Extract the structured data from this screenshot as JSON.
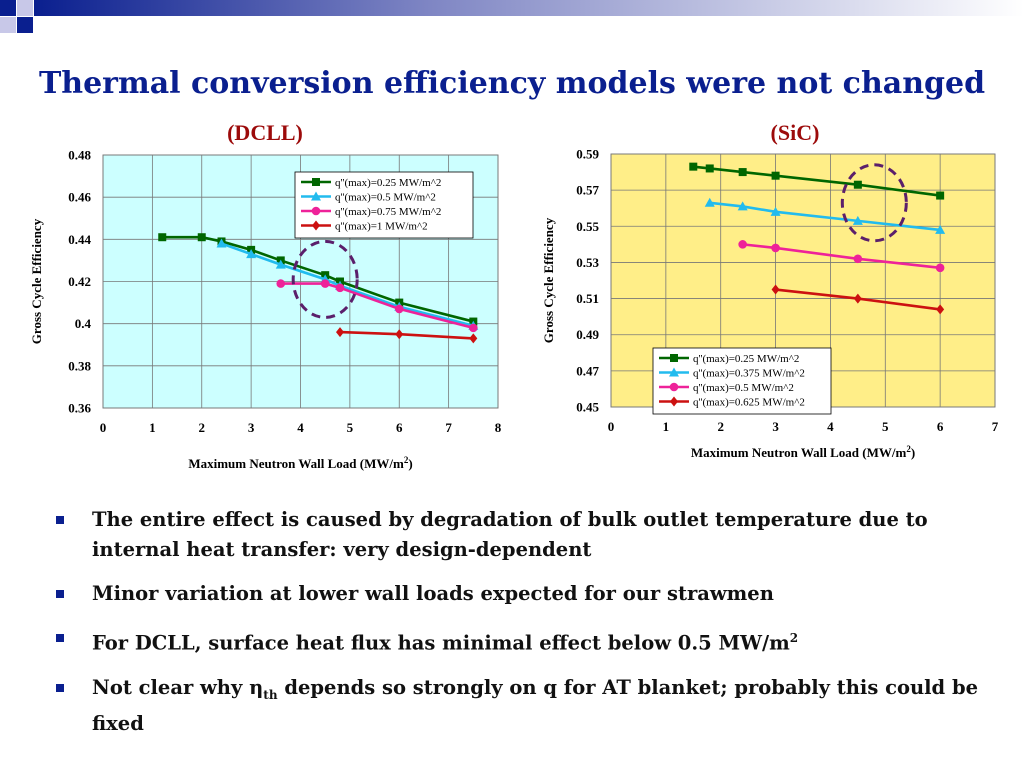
{
  "slide": {
    "title": "Thermal conversion efficiency models were not changed",
    "bullets": [
      {
        "text": "The entire effect is caused by degradation of bulk outlet temperature due to internal heat transfer:  very design-dependent"
      },
      {
        "text": "Minor variation at lower wall loads expected for our strawmen"
      },
      {
        "pre": "For DCLL, surface heat flux has minimal effect below 0.5 MW/m",
        "sup": "2"
      },
      {
        "pre": "Not clear why ",
        "greek": "η",
        "sub": "th",
        "post": " depends so strongly on q for AT blanket; probably this could be fixed"
      }
    ]
  },
  "colors": {
    "title": "#0a1f8f",
    "subtitle": "#9c0a0a",
    "bullet_marker": "#0a1f8f",
    "dcll_bg": "#ccffff",
    "sic_bg": "#ffee88",
    "circle": "#5b1f6b"
  },
  "chart_data": [
    {
      "type": "line",
      "subtitle": "(DCLL)",
      "xlabel": "Maximum Neutron Wall Load (MW/m",
      "xlabel_sup": "2",
      "xlabel_post": ")",
      "ylabel": "Gross Cycle Efficiency",
      "xlim": [
        0,
        8
      ],
      "ylim": [
        0.36,
        0.48
      ],
      "xticks": [
        "0",
        "1",
        "2",
        "3",
        "4",
        "5",
        "6",
        "7",
        "8"
      ],
      "yticks": [
        "0.36",
        "0.38",
        "0.4",
        "0.42",
        "0.44",
        "0.46",
        "0.48"
      ],
      "grid": true,
      "legend_position": "top-right",
      "series": [
        {
          "name": "q''(max)=0.25 MW/m^2",
          "color": "#006600",
          "marker": "square",
          "x": [
            1.2,
            2.0,
            2.4,
            3.0,
            3.6,
            4.5,
            4.8,
            6.0,
            7.5
          ],
          "y": [
            0.441,
            0.441,
            0.439,
            0.435,
            0.43,
            0.423,
            0.42,
            0.41,
            0.401
          ]
        },
        {
          "name": "q''(max)=0.5 MW/m^2",
          "color": "#22bbee",
          "marker": "triangle",
          "x": [
            2.4,
            3.0,
            3.6,
            4.5,
            4.8,
            6.0,
            7.5
          ],
          "y": [
            0.438,
            0.433,
            0.428,
            0.421,
            0.418,
            0.408,
            0.399
          ]
        },
        {
          "name": "q''(max)=0.75 MW/m^2",
          "color": "#ee2299",
          "marker": "circle",
          "x": [
            3.6,
            4.5,
            4.8,
            6.0,
            7.5
          ],
          "y": [
            0.419,
            0.419,
            0.417,
            0.407,
            0.398
          ]
        },
        {
          "name": "q''(max)=1 MW/m^2",
          "color": "#cc1111",
          "marker": "diamond",
          "x": [
            4.8,
            6.0,
            7.5
          ],
          "y": [
            0.396,
            0.395,
            0.393
          ]
        }
      ],
      "highlight": {
        "x": 4.5,
        "y": 0.421
      }
    },
    {
      "type": "line",
      "subtitle": "(SiC)",
      "xlabel": "Maximum Neutron Wall Load (MW/m",
      "xlabel_sup": "2",
      "xlabel_post": ")",
      "ylabel": "Gross Cycle Efficiency",
      "xlim": [
        0,
        7
      ],
      "ylim": [
        0.45,
        0.59
      ],
      "xticks": [
        "0",
        "1",
        "2",
        "3",
        "4",
        "5",
        "6",
        "7"
      ],
      "yticks": [
        "0.45",
        "0.47",
        "0.49",
        "0.51",
        "0.53",
        "0.55",
        "0.57",
        "0.59"
      ],
      "grid": true,
      "legend_position": "bottom-center",
      "series": [
        {
          "name": "q''(max)=0.25 MW/m^2",
          "color": "#006600",
          "marker": "square",
          "x": [
            1.5,
            1.8,
            2.4,
            3.0,
            4.5,
            6.0
          ],
          "y": [
            0.583,
            0.582,
            0.58,
            0.578,
            0.573,
            0.567
          ]
        },
        {
          "name": "q''(max)=0.375 MW/m^2",
          "color": "#22bbee",
          "marker": "triangle",
          "x": [
            1.8,
            2.4,
            3.0,
            4.5,
            6.0
          ],
          "y": [
            0.563,
            0.561,
            0.558,
            0.553,
            0.548
          ]
        },
        {
          "name": "q''(max)=0.5 MW/m^2",
          "color": "#ee2299",
          "marker": "circle",
          "x": [
            2.4,
            3.0,
            4.5,
            6.0
          ],
          "y": [
            0.54,
            0.538,
            0.532,
            0.527
          ]
        },
        {
          "name": "q''(max)=0.625 MW/m^2",
          "color": "#cc1111",
          "marker": "diamond",
          "x": [
            3.0,
            4.5,
            6.0
          ],
          "y": [
            0.515,
            0.51,
            0.504
          ]
        }
      ],
      "highlight": {
        "x": 4.8,
        "y": 0.563
      }
    }
  ]
}
